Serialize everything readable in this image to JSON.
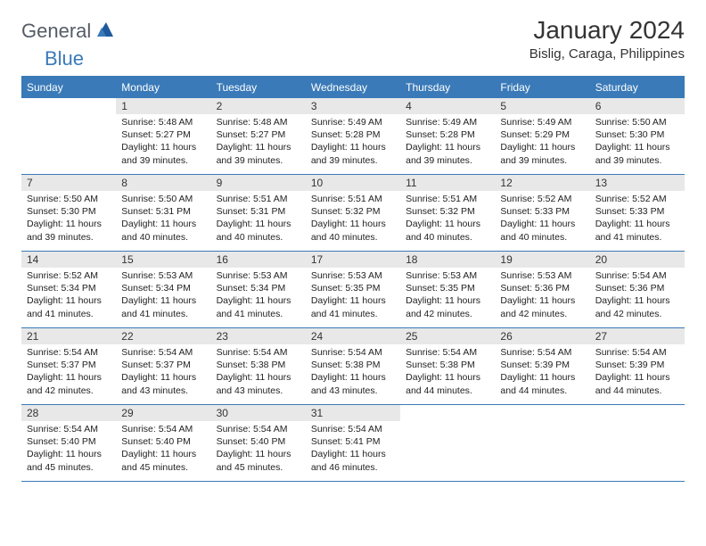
{
  "logo": {
    "general": "General",
    "blue": "Blue"
  },
  "title": "January 2024",
  "location": "Bislig, Caraga, Philippines",
  "colors": {
    "header_bg": "#3a7ab8",
    "header_text": "#ffffff",
    "day_num_bg": "#e8e8e8",
    "border": "#3a7ab8",
    "logo_gray": "#555c66",
    "logo_blue": "#3a7ab8",
    "page_bg": "#ffffff",
    "text": "#222222"
  },
  "day_headers": [
    "Sunday",
    "Monday",
    "Tuesday",
    "Wednesday",
    "Thursday",
    "Friday",
    "Saturday"
  ],
  "weeks": [
    [
      null,
      {
        "n": "1",
        "sr": "Sunrise: 5:48 AM",
        "ss": "Sunset: 5:27 PM",
        "d1": "Daylight: 11 hours",
        "d2": "and 39 minutes."
      },
      {
        "n": "2",
        "sr": "Sunrise: 5:48 AM",
        "ss": "Sunset: 5:27 PM",
        "d1": "Daylight: 11 hours",
        "d2": "and 39 minutes."
      },
      {
        "n": "3",
        "sr": "Sunrise: 5:49 AM",
        "ss": "Sunset: 5:28 PM",
        "d1": "Daylight: 11 hours",
        "d2": "and 39 minutes."
      },
      {
        "n": "4",
        "sr": "Sunrise: 5:49 AM",
        "ss": "Sunset: 5:28 PM",
        "d1": "Daylight: 11 hours",
        "d2": "and 39 minutes."
      },
      {
        "n": "5",
        "sr": "Sunrise: 5:49 AM",
        "ss": "Sunset: 5:29 PM",
        "d1": "Daylight: 11 hours",
        "d2": "and 39 minutes."
      },
      {
        "n": "6",
        "sr": "Sunrise: 5:50 AM",
        "ss": "Sunset: 5:30 PM",
        "d1": "Daylight: 11 hours",
        "d2": "and 39 minutes."
      }
    ],
    [
      {
        "n": "7",
        "sr": "Sunrise: 5:50 AM",
        "ss": "Sunset: 5:30 PM",
        "d1": "Daylight: 11 hours",
        "d2": "and 39 minutes."
      },
      {
        "n": "8",
        "sr": "Sunrise: 5:50 AM",
        "ss": "Sunset: 5:31 PM",
        "d1": "Daylight: 11 hours",
        "d2": "and 40 minutes."
      },
      {
        "n": "9",
        "sr": "Sunrise: 5:51 AM",
        "ss": "Sunset: 5:31 PM",
        "d1": "Daylight: 11 hours",
        "d2": "and 40 minutes."
      },
      {
        "n": "10",
        "sr": "Sunrise: 5:51 AM",
        "ss": "Sunset: 5:32 PM",
        "d1": "Daylight: 11 hours",
        "d2": "and 40 minutes."
      },
      {
        "n": "11",
        "sr": "Sunrise: 5:51 AM",
        "ss": "Sunset: 5:32 PM",
        "d1": "Daylight: 11 hours",
        "d2": "and 40 minutes."
      },
      {
        "n": "12",
        "sr": "Sunrise: 5:52 AM",
        "ss": "Sunset: 5:33 PM",
        "d1": "Daylight: 11 hours",
        "d2": "and 40 minutes."
      },
      {
        "n": "13",
        "sr": "Sunrise: 5:52 AM",
        "ss": "Sunset: 5:33 PM",
        "d1": "Daylight: 11 hours",
        "d2": "and 41 minutes."
      }
    ],
    [
      {
        "n": "14",
        "sr": "Sunrise: 5:52 AM",
        "ss": "Sunset: 5:34 PM",
        "d1": "Daylight: 11 hours",
        "d2": "and 41 minutes."
      },
      {
        "n": "15",
        "sr": "Sunrise: 5:53 AM",
        "ss": "Sunset: 5:34 PM",
        "d1": "Daylight: 11 hours",
        "d2": "and 41 minutes."
      },
      {
        "n": "16",
        "sr": "Sunrise: 5:53 AM",
        "ss": "Sunset: 5:34 PM",
        "d1": "Daylight: 11 hours",
        "d2": "and 41 minutes."
      },
      {
        "n": "17",
        "sr": "Sunrise: 5:53 AM",
        "ss": "Sunset: 5:35 PM",
        "d1": "Daylight: 11 hours",
        "d2": "and 41 minutes."
      },
      {
        "n": "18",
        "sr": "Sunrise: 5:53 AM",
        "ss": "Sunset: 5:35 PM",
        "d1": "Daylight: 11 hours",
        "d2": "and 42 minutes."
      },
      {
        "n": "19",
        "sr": "Sunrise: 5:53 AM",
        "ss": "Sunset: 5:36 PM",
        "d1": "Daylight: 11 hours",
        "d2": "and 42 minutes."
      },
      {
        "n": "20",
        "sr": "Sunrise: 5:54 AM",
        "ss": "Sunset: 5:36 PM",
        "d1": "Daylight: 11 hours",
        "d2": "and 42 minutes."
      }
    ],
    [
      {
        "n": "21",
        "sr": "Sunrise: 5:54 AM",
        "ss": "Sunset: 5:37 PM",
        "d1": "Daylight: 11 hours",
        "d2": "and 42 minutes."
      },
      {
        "n": "22",
        "sr": "Sunrise: 5:54 AM",
        "ss": "Sunset: 5:37 PM",
        "d1": "Daylight: 11 hours",
        "d2": "and 43 minutes."
      },
      {
        "n": "23",
        "sr": "Sunrise: 5:54 AM",
        "ss": "Sunset: 5:38 PM",
        "d1": "Daylight: 11 hours",
        "d2": "and 43 minutes."
      },
      {
        "n": "24",
        "sr": "Sunrise: 5:54 AM",
        "ss": "Sunset: 5:38 PM",
        "d1": "Daylight: 11 hours",
        "d2": "and 43 minutes."
      },
      {
        "n": "25",
        "sr": "Sunrise: 5:54 AM",
        "ss": "Sunset: 5:38 PM",
        "d1": "Daylight: 11 hours",
        "d2": "and 44 minutes."
      },
      {
        "n": "26",
        "sr": "Sunrise: 5:54 AM",
        "ss": "Sunset: 5:39 PM",
        "d1": "Daylight: 11 hours",
        "d2": "and 44 minutes."
      },
      {
        "n": "27",
        "sr": "Sunrise: 5:54 AM",
        "ss": "Sunset: 5:39 PM",
        "d1": "Daylight: 11 hours",
        "d2": "and 44 minutes."
      }
    ],
    [
      {
        "n": "28",
        "sr": "Sunrise: 5:54 AM",
        "ss": "Sunset: 5:40 PM",
        "d1": "Daylight: 11 hours",
        "d2": "and 45 minutes."
      },
      {
        "n": "29",
        "sr": "Sunrise: 5:54 AM",
        "ss": "Sunset: 5:40 PM",
        "d1": "Daylight: 11 hours",
        "d2": "and 45 minutes."
      },
      {
        "n": "30",
        "sr": "Sunrise: 5:54 AM",
        "ss": "Sunset: 5:40 PM",
        "d1": "Daylight: 11 hours",
        "d2": "and 45 minutes."
      },
      {
        "n": "31",
        "sr": "Sunrise: 5:54 AM",
        "ss": "Sunset: 5:41 PM",
        "d1": "Daylight: 11 hours",
        "d2": "and 46 minutes."
      },
      null,
      null,
      null
    ]
  ]
}
